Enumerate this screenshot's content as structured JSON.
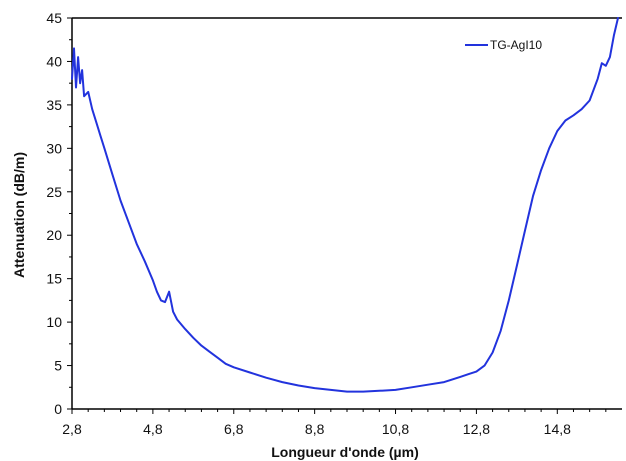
{
  "chart_data": {
    "type": "line",
    "xlabel": "Longueur d'onde (µm)",
    "ylabel": "Attenuation (dB/m)",
    "xlim": [
      2.8,
      16.4
    ],
    "ylim": [
      0,
      45
    ],
    "x_ticks": [
      2.8,
      4.8,
      6.8,
      8.8,
      10.8,
      12.8,
      14.8
    ],
    "x_tick_labels": [
      "2,8",
      "4,8",
      "6,8",
      "8,8",
      "10,8",
      "12,8",
      "14,8"
    ],
    "y_ticks": [
      0,
      5,
      10,
      15,
      20,
      25,
      30,
      35,
      40,
      45
    ],
    "y_tick_labels": [
      "0",
      "5",
      "10",
      "15",
      "20",
      "25",
      "30",
      "35",
      "40",
      "45"
    ],
    "legend_position": "top-right",
    "grid": false,
    "series": [
      {
        "name": "TG-AgI10",
        "color": "#2233dd",
        "x": [
          2.8,
          2.85,
          2.9,
          2.95,
          3.0,
          3.05,
          3.1,
          3.2,
          3.3,
          3.4,
          3.5,
          3.6,
          3.8,
          4.0,
          4.2,
          4.4,
          4.6,
          4.8,
          4.9,
          5.0,
          5.1,
          5.2,
          5.3,
          5.4,
          5.6,
          5.8,
          6.0,
          6.2,
          6.4,
          6.6,
          6.8,
          7.2,
          7.6,
          8.0,
          8.4,
          8.8,
          9.2,
          9.6,
          10.0,
          10.4,
          10.8,
          11.2,
          11.6,
          12.0,
          12.4,
          12.6,
          12.8,
          13.0,
          13.2,
          13.4,
          13.6,
          13.8,
          14.0,
          14.2,
          14.4,
          14.6,
          14.8,
          15.0,
          15.2,
          15.4,
          15.6,
          15.8,
          15.9,
          16.0,
          16.1,
          16.2,
          16.3
        ],
        "y": [
          38,
          41.5,
          37,
          40.5,
          37.5,
          39,
          36,
          36.5,
          34.5,
          33,
          31.5,
          30,
          27,
          24,
          21.5,
          19,
          17,
          14.8,
          13.5,
          12.5,
          12.3,
          13.5,
          11.2,
          10.3,
          9.2,
          8.2,
          7.3,
          6.6,
          5.9,
          5.2,
          4.8,
          4.2,
          3.6,
          3.1,
          2.7,
          2.4,
          2.2,
          2.0,
          2.0,
          2.1,
          2.2,
          2.5,
          2.8,
          3.1,
          3.7,
          4.0,
          4.3,
          5.0,
          6.5,
          9.0,
          12.5,
          16.5,
          20.5,
          24.5,
          27.5,
          30.0,
          32.0,
          33.2,
          33.8,
          34.5,
          35.5,
          38.0,
          39.8,
          39.5,
          40.5,
          43.0,
          45.0
        ]
      }
    ]
  }
}
